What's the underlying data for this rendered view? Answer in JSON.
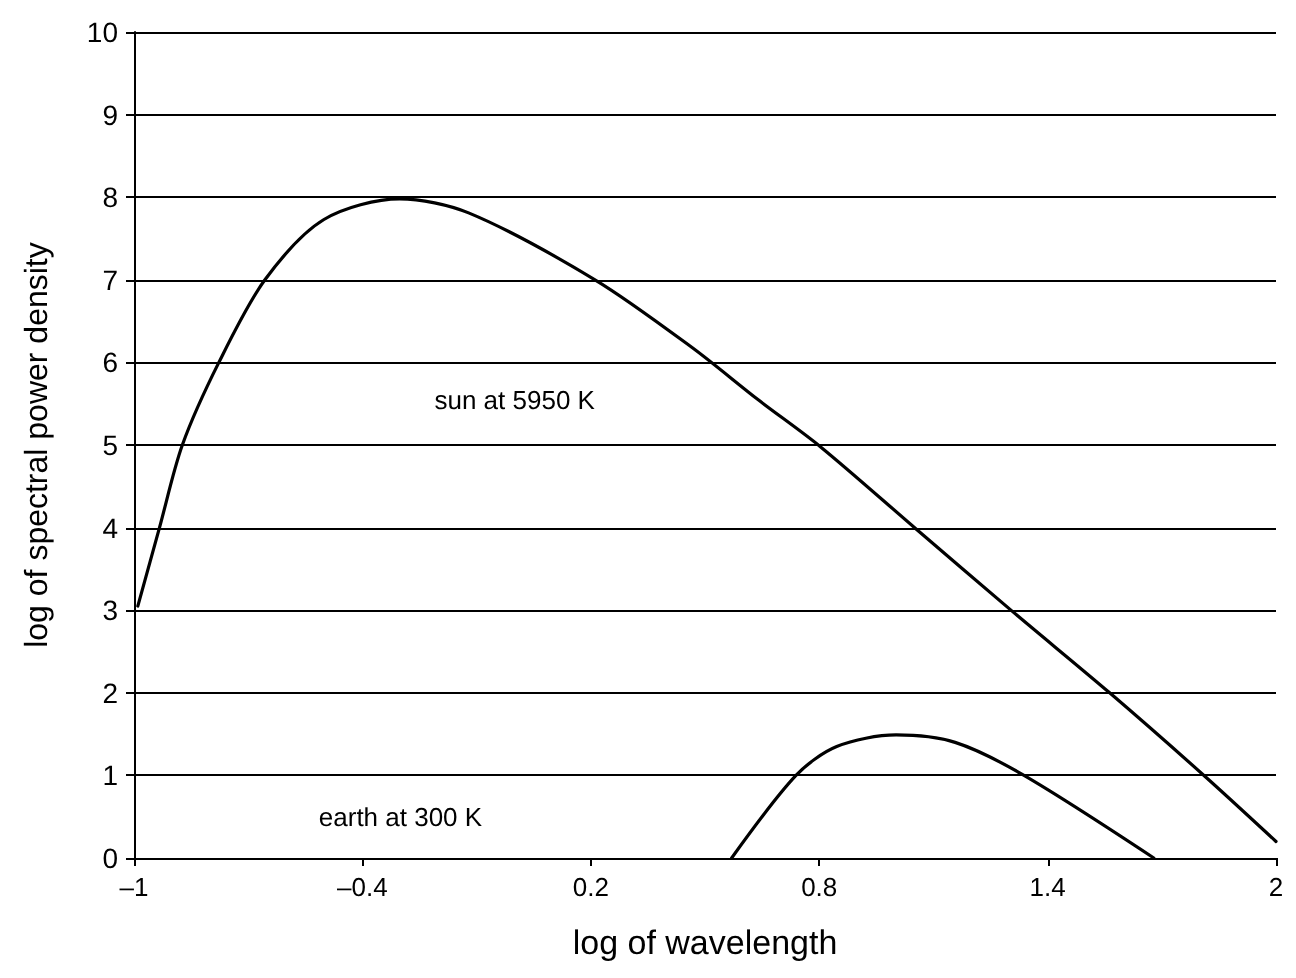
{
  "chart_data": {
    "type": "line",
    "xlabel": "log of wavelength",
    "ylabel": "log of spectral power density",
    "xlim": [
      -1,
      2
    ],
    "xticks": [
      {
        "value": -1,
        "label": "–1"
      },
      {
        "value": -0.4,
        "label": "–0.4"
      },
      0.2,
      0.8,
      1.4,
      2
    ],
    "annotations": [
      "sun at 5950 K",
      "earth at 300 K"
    ],
    "ylim": [
      0,
      10
    ],
    "yticks": [
      0,
      1,
      2,
      3,
      4,
      5,
      6,
      7,
      8,
      9,
      10
    ],
    "grid": "y",
    "legend": false,
    "marker": "none",
    "line_style": "solid",
    "series": [
      {
        "color": "#000000",
        "x": [
          -0.99,
          -0.933,
          -0.873,
          -0.777,
          -0.656,
          -0.501,
          -0.302,
          -0.121,
          0.211,
          0.466,
          0.639,
          0.803,
          1.053,
          1.309,
          1.563,
          1.813,
          2.0
        ],
        "values": [
          3.05,
          4.0,
          5.0,
          6.0,
          7.0,
          7.73,
          7.98,
          7.81,
          7.0,
          6.18,
          5.55,
          4.98,
          3.99,
          2.98,
          2.0,
          0.99,
          0.2
        ]
      },
      {
        "color": "#000000",
        "x": [
          0.57,
          0.739,
          0.846,
          1.002,
          1.157,
          1.338,
          1.679
        ],
        "values": [
          0,
          1.0,
          1.35,
          1.49,
          1.4,
          1.0,
          0
        ]
      }
    ]
  }
}
